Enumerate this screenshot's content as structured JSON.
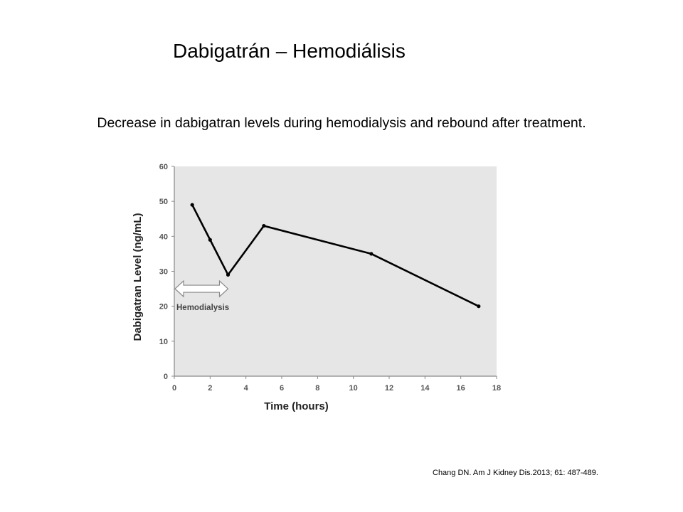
{
  "slide": {
    "title": "Dabigatrán – Hemodiálisis",
    "subtitle": "Decrease in dabigatran levels during hemodialysis and rebound after treatment.",
    "citation": "Chang DN. Am J Kidney Dis.2013; 61: 487-489."
  },
  "chart_data": {
    "type": "line",
    "xlabel": "Time (hours)",
    "ylabel": "Dabigatran Level (ng/mL)",
    "xlim": [
      0,
      18
    ],
    "ylim": [
      0,
      60
    ],
    "xticks": [
      0,
      2,
      4,
      6,
      8,
      10,
      12,
      14,
      16,
      18
    ],
    "yticks": [
      0,
      10,
      20,
      30,
      40,
      50,
      60
    ],
    "grid": false,
    "legend": "none",
    "series": [
      {
        "x": [
          1,
          2,
          3,
          5,
          11,
          17
        ],
        "y": [
          49,
          39,
          29,
          43,
          35,
          20
        ]
      }
    ],
    "annotation": {
      "text": "Hemodialysis",
      "x_range": [
        0,
        3
      ],
      "y": 25
    },
    "colors": {
      "plot_background": "#e6e6e6",
      "line": "#000000",
      "axis": "#888888"
    }
  }
}
